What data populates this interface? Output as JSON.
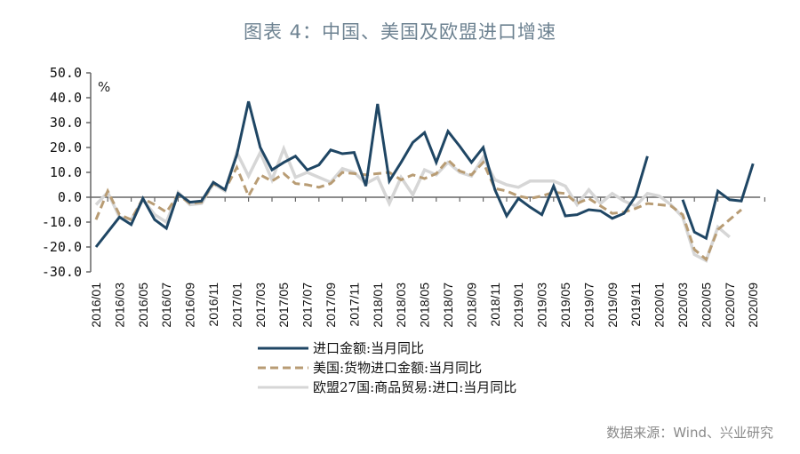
{
  "title": "图表 4：中国、美国及欧盟进口增速",
  "source": "数据来源：Wind、兴业研究",
  "chart_data": {
    "type": "line",
    "title": "图表 4：中国、美国及欧盟进口增速",
    "xlabel": "",
    "ylabel": "%",
    "ylim": [
      -30,
      50
    ],
    "yticks": [
      "50.0",
      "40.0",
      "30.0",
      "20.0",
      "10.0",
      "0.0",
      "-10.0",
      "-20.0",
      "-30.0"
    ],
    "ytick_values": [
      50,
      40,
      30,
      20,
      10,
      0,
      -10,
      -20,
      -30
    ],
    "grid": false,
    "legend_position": "bottom",
    "x": [
      "2016/01",
      "2016/02",
      "2016/03",
      "2016/04",
      "2016/05",
      "2016/06",
      "2016/07",
      "2016/08",
      "2016/09",
      "2016/10",
      "2016/11",
      "2016/12",
      "2017/01",
      "2017/02",
      "2017/03",
      "2017/04",
      "2017/05",
      "2017/06",
      "2017/07",
      "2017/08",
      "2017/09",
      "2017/10",
      "2017/11",
      "2017/12",
      "2018/01",
      "2018/02",
      "2018/03",
      "2018/04",
      "2018/05",
      "2018/06",
      "2018/07",
      "2018/08",
      "2018/09",
      "2018/10",
      "2018/11",
      "2018/12",
      "2019/01",
      "2019/02",
      "2019/03",
      "2019/04",
      "2019/05",
      "2019/06",
      "2019/07",
      "2019/08",
      "2019/09",
      "2019/10",
      "2019/11",
      "2019/12",
      "2020/01",
      "2020/02",
      "2020/03",
      "2020/04",
      "2020/05",
      "2020/06",
      "2020/07",
      "2020/08",
      "2020/09"
    ],
    "x_tick_labels": [
      "2016/01",
      "2016/03",
      "2016/05",
      "2016/07",
      "2016/09",
      "2016/11",
      "2017/01",
      "2017/03",
      "2017/05",
      "2017/07",
      "2017/09",
      "2017/11",
      "2018/01",
      "2018/03",
      "2018/05",
      "2018/07",
      "2018/09",
      "2018/11",
      "2019/01",
      "2019/03",
      "2019/05",
      "2019/07",
      "2019/09",
      "2019/11",
      "2020/01",
      "2020/03",
      "2020/05",
      "2020/07",
      "2020/09"
    ],
    "series": [
      {
        "name": "进口金额:当月同比",
        "color": "#1f4664",
        "style": "solid",
        "values": [
          -20,
          -14,
          -8,
          -11,
          -0.5,
          -9,
          -12.5,
          1.5,
          -2,
          -1.5,
          6,
          3,
          17,
          38.5,
          20,
          11,
          14,
          16.5,
          11,
          13,
          19,
          17.5,
          18,
          4.5,
          37.5,
          6.5,
          14,
          22,
          26,
          14,
          26.5,
          20.5,
          14,
          20,
          3,
          -7.5,
          -0.5,
          -4,
          -7,
          4.5,
          -7.5,
          -7,
          -5,
          -5.5,
          -8.5,
          -6.5,
          0.5,
          16.5,
          null,
          null,
          -1,
          -14,
          -16.5,
          2.5,
          -1,
          -1.5,
          13.5
        ]
      },
      {
        "name": "美国:货物进口金额:当月同比",
        "color": "#b89c74",
        "style": "dashed",
        "values": [
          -9,
          2.5,
          -7,
          -9,
          -0.5,
          -3,
          -6,
          1,
          -2.5,
          -2,
          5.5,
          3,
          12,
          0.5,
          9,
          6.5,
          9.5,
          5.5,
          5,
          4,
          5.5,
          10,
          9.5,
          9,
          9.5,
          10,
          7,
          9,
          7.5,
          9.5,
          15,
          10.5,
          9,
          14,
          3.5,
          2.5,
          0.5,
          -0.5,
          0.5,
          2,
          1.5,
          -2.5,
          -0.5,
          -3.5,
          -6.5,
          -6,
          -4.5,
          -2.5,
          -3,
          -3.5,
          -7,
          -21,
          -25,
          -13,
          -9,
          -5,
          null
        ]
      },
      {
        "name": "欧盟27国:商品贸易:进口:当月同比",
        "color": "#d6d6d6",
        "style": "solid",
        "values": [
          -3,
          2,
          -8,
          -9,
          -1,
          -7,
          -10,
          2,
          -3,
          -2.5,
          5.5,
          2.5,
          18,
          8.5,
          18,
          7,
          19.5,
          8,
          10,
          8,
          6,
          11.5,
          10,
          5.5,
          8,
          -2.5,
          8,
          1,
          11,
          9,
          14,
          10,
          8.5,
          16,
          7,
          5,
          4,
          6.5,
          6.5,
          6.5,
          4.5,
          -3,
          3,
          -2.5,
          1.5,
          -1.5,
          -3.5,
          1.5,
          0.5,
          -3,
          -8,
          -23,
          -25.5,
          -12,
          -16,
          null,
          null
        ]
      }
    ]
  },
  "legend": [
    {
      "label": "进口金额:当月同比",
      "style": "solid",
      "color": "#1f4664"
    },
    {
      "label": "美国:货物进口金额:当月同比",
      "style": "dashed",
      "color": "#b89c74"
    },
    {
      "label": "欧盟27国:商品贸易:进口:当月同比",
      "style": "solid",
      "color": "#d6d6d6"
    }
  ]
}
